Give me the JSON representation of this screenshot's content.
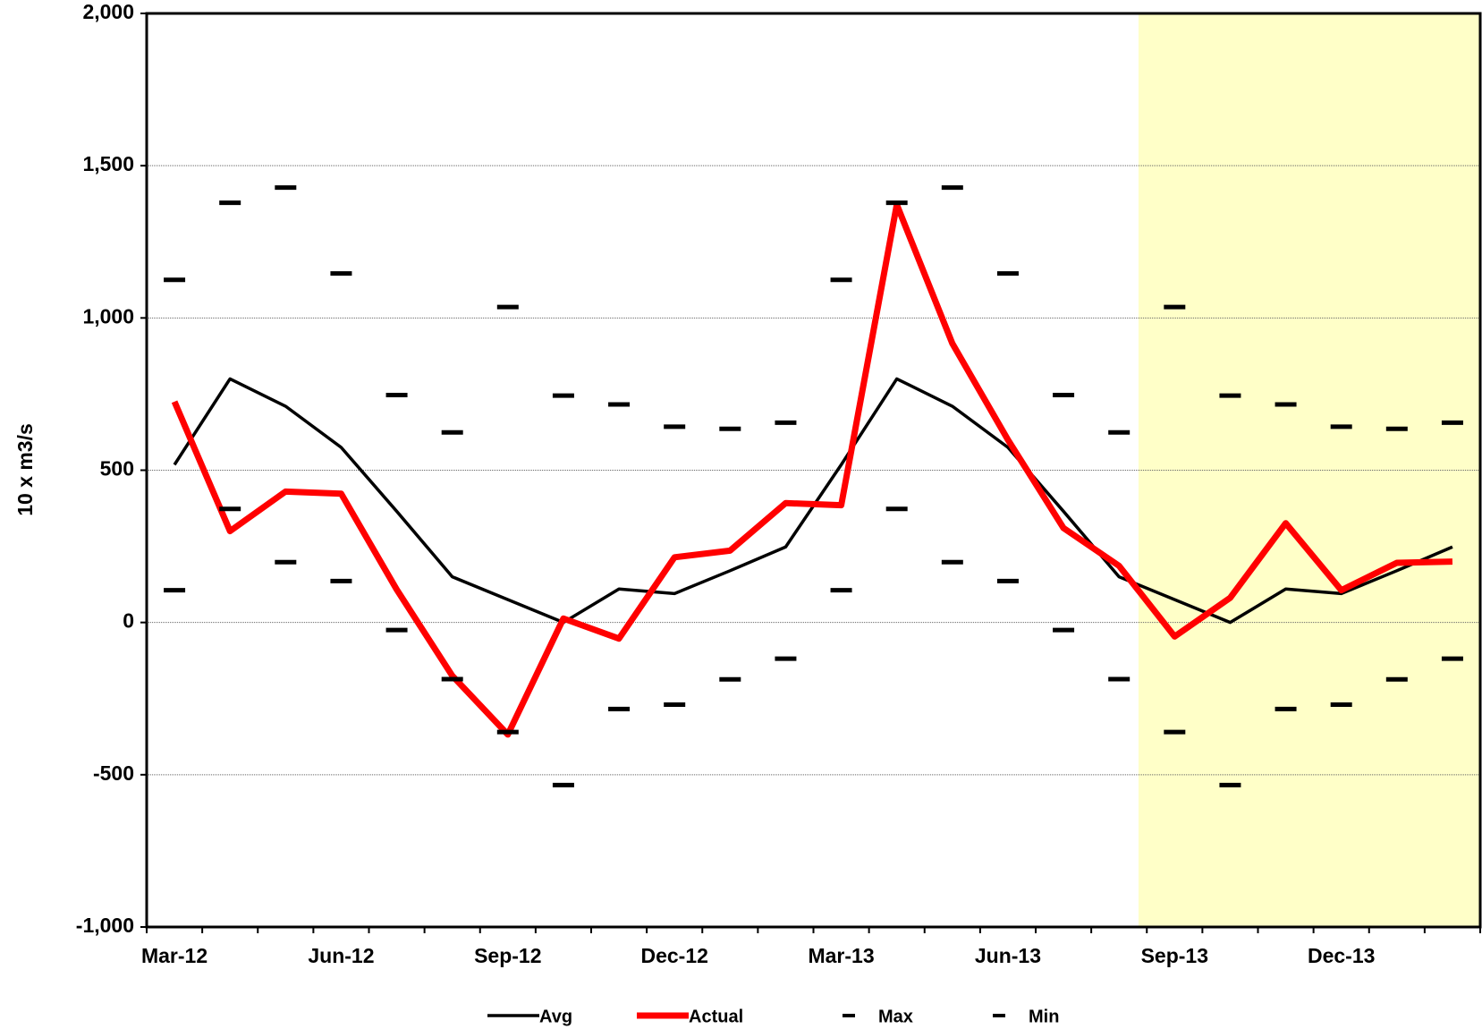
{
  "chart_data": {
    "type": "line",
    "y_label": "10 x m3/s",
    "categories": [
      "Mar-12",
      null,
      null,
      "Jun-12",
      null,
      null,
      "Sep-12",
      null,
      null,
      "Dec-12",
      null,
      null,
      "Mar-13",
      null,
      null,
      "Jun-13",
      null,
      null,
      "Sep-13",
      null,
      null,
      "Dec-13",
      null,
      null
    ],
    "series": [
      {
        "name": "Avg",
        "color": "#000000",
        "style": "line",
        "values": [
          518,
          800,
          710,
          575,
          365,
          150,
          75,
          0,
          110,
          95,
          170,
          248,
          518,
          800,
          710,
          575,
          365,
          150,
          75,
          0,
          110,
          95,
          170,
          248
        ]
      },
      {
        "name": "Actual",
        "color": "#ff0000",
        "style": "line",
        "values": [
          725,
          300,
          430,
          423,
          108,
          -175,
          -368,
          13,
          -53,
          214,
          236,
          392,
          385,
          1372,
          916,
          600,
          310,
          186,
          -46,
          81,
          326,
          106,
          196,
          200
        ]
      },
      {
        "name": "Max",
        "color": "#000000",
        "style": "dash",
        "values": [
          1125,
          1378,
          1428,
          1146,
          747,
          624,
          1036,
          745,
          716,
          643,
          636,
          656,
          1125,
          1378,
          1428,
          1146,
          747,
          624,
          1036,
          745,
          716,
          643,
          636,
          656
        ]
      },
      {
        "name": "Min",
        "color": "#000000",
        "style": "dash",
        "values": [
          106,
          373,
          198,
          136,
          -25,
          -186,
          -360,
          -534,
          -284,
          -270,
          -187,
          -119,
          106,
          373,
          198,
          136,
          -25,
          -186,
          -360,
          -534,
          -284,
          -270,
          -187,
          -119
        ]
      }
    ],
    "ylim": [
      -1000,
      2000
    ],
    "yticks": [
      {
        "value": -1000,
        "label": "-1,000"
      },
      -500,
      0,
      500,
      {
        "value": 1000,
        "label": "1,000"
      },
      {
        "value": 1500,
        "label": "1,500"
      },
      {
        "value": 2000,
        "label": "2,000"
      }
    ],
    "grid": true,
    "legend": "bottom"
  }
}
